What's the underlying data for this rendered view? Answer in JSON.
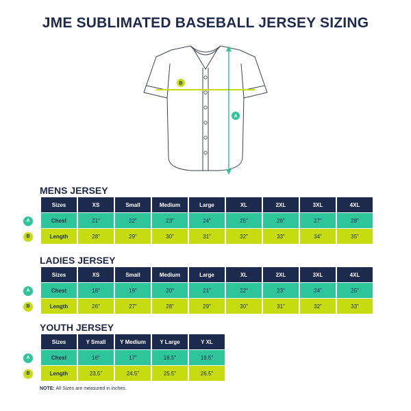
{
  "title": "JME SUBLIMATED BASEBALL JERSEY SIZING",
  "diagram": {
    "badge_a": "A",
    "badge_b": "B"
  },
  "mens": {
    "title": "MENS JERSEY",
    "header": [
      "Sizes",
      "XS",
      "Small",
      "Medium",
      "Large",
      "XL",
      "2XL",
      "3XL",
      "4XL"
    ],
    "chest": {
      "badge": "A",
      "label": "Chest",
      "values": [
        "21\"",
        "22\"",
        "23\"",
        "24\"",
        "25\"",
        "26\"",
        "27\"",
        "28\""
      ]
    },
    "length": {
      "badge": "B",
      "label": "Length",
      "values": [
        "28\"",
        "29\"",
        "30\"",
        "31\"",
        "32\"",
        "33\"",
        "34\"",
        "35\""
      ]
    }
  },
  "ladies": {
    "title": "LADIES JERSEY",
    "header": [
      "Sizes",
      "XS",
      "Small",
      "Medium",
      "Large",
      "XL",
      "2XL",
      "3XL",
      "4XL"
    ],
    "chest": {
      "badge": "A",
      "label": "Chest",
      "values": [
        "18\"",
        "19\"",
        "20\"",
        "21\"",
        "22\"",
        "23\"",
        "24\"",
        "25\""
      ]
    },
    "length": {
      "badge": "B",
      "label": "Length",
      "values": [
        "26\"",
        "27\"",
        "28\"",
        "29\"",
        "30\"",
        "31\"",
        "32\"",
        "33\""
      ]
    }
  },
  "youth": {
    "title": "YOUTH JERSEY",
    "header": [
      "Sizes",
      "Y Small",
      "Y Medium",
      "Y Large",
      "Y XL"
    ],
    "chest": {
      "badge": "A",
      "label": "Chest",
      "values": [
        "16\"",
        "17\"",
        "18.5\"",
        "19.5\""
      ]
    },
    "length": {
      "badge": "B",
      "label": "Length",
      "values": [
        "23.5\"",
        "24.5\"",
        "25.5\"",
        "26.5\""
      ]
    }
  },
  "note": {
    "label": "NOTE:",
    "text": "All Sizes are measured in inches."
  },
  "colors": {
    "navy": "#1c2a4e",
    "teal": "#2fc59b",
    "lime": "#c7dc10"
  }
}
